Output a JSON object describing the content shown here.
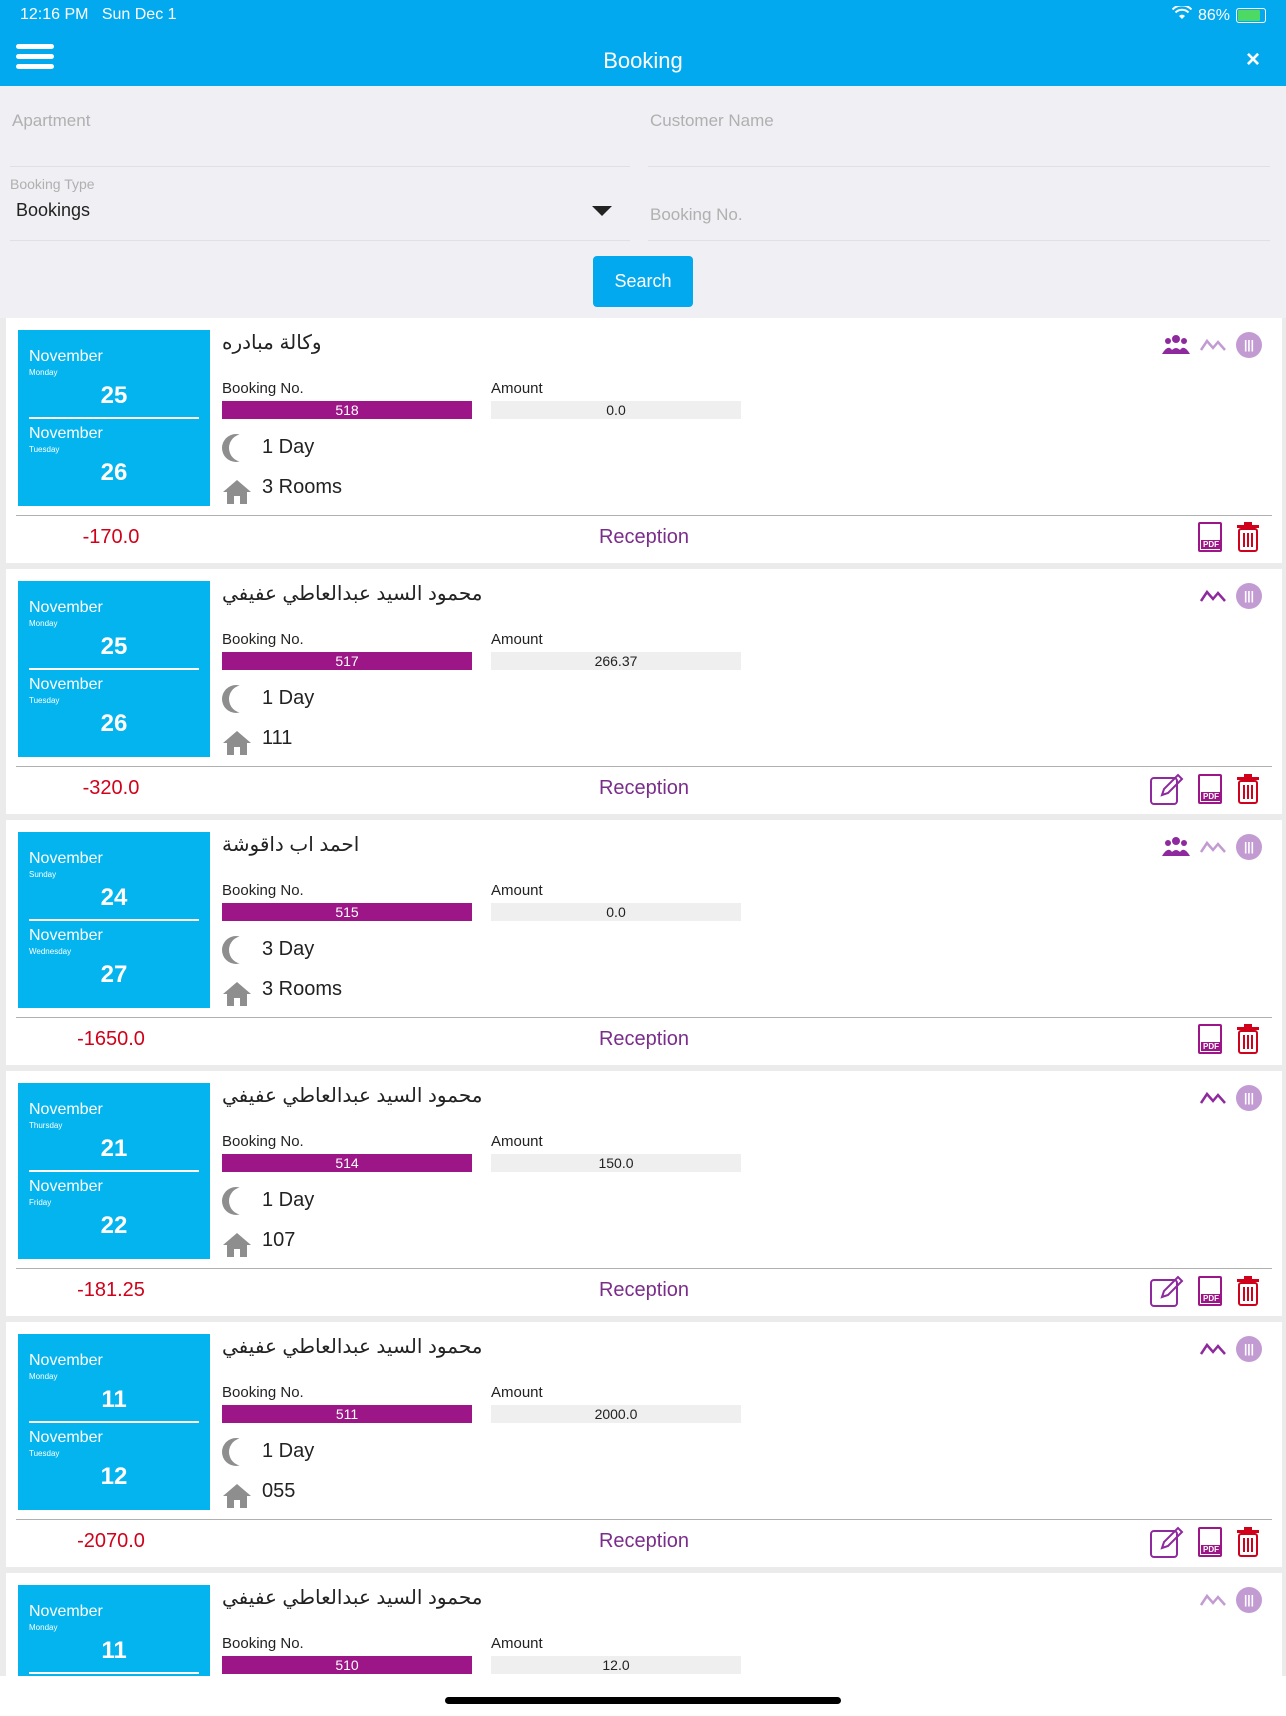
{
  "status_bar": {
    "time": "12:16 PM",
    "date": "Sun Dec 1",
    "battery": "86%"
  },
  "header": {
    "title": "Booking",
    "close_label": "×"
  },
  "filters": {
    "apartment_placeholder": "Apartment",
    "customer_placeholder": "Customer Name",
    "booking_type_label": "Booking Type",
    "booking_type_value": "Bookings",
    "booking_no_placeholder": "Booking No.",
    "search_label": "Search"
  },
  "labels": {
    "booking_no": "Booking No.",
    "amount": "Amount",
    "reception": "Reception",
    "pdf": "PDF"
  },
  "bookings": [
    {
      "customer": "وكالة مبادره",
      "from_month": "November",
      "from_dayname": "Monday",
      "from_day": "25",
      "to_month": "November",
      "to_dayname": "Tuesday",
      "to_day": "26",
      "booking_no": "518",
      "amount": "0.0",
      "duration": "1 Day",
      "rooms": "3 Rooms",
      "balance": "-170.0"
    },
    {
      "customer": "محمود السيد عبدالعاطي عفيفي",
      "from_month": "November",
      "from_dayname": "Monday",
      "from_day": "25",
      "to_month": "November",
      "to_dayname": "Tuesday",
      "to_day": "26",
      "booking_no": "517",
      "amount": "266.37",
      "duration": "1 Day",
      "rooms": "111",
      "balance": "-320.0"
    },
    {
      "customer": "احمد اب داقوشة",
      "from_month": "November",
      "from_dayname": "Sunday",
      "from_day": "24",
      "to_month": "November",
      "to_dayname": "Wednesday",
      "to_day": "27",
      "booking_no": "515",
      "amount": "0.0",
      "duration": "3 Day",
      "rooms": "3 Rooms",
      "balance": "-1650.0"
    },
    {
      "customer": "محمود السيد عبدالعاطي عفيفي",
      "from_month": "November",
      "from_dayname": "Thursday",
      "from_day": "21",
      "to_month": "November",
      "to_dayname": "Friday",
      "to_day": "22",
      "booking_no": "514",
      "amount": "150.0",
      "duration": "1 Day",
      "rooms": "107",
      "balance": "-181.25"
    },
    {
      "customer": "محمود السيد عبدالعاطي عفيفي",
      "from_month": "November",
      "from_dayname": "Monday",
      "from_day": "11",
      "to_month": "November",
      "to_dayname": "Tuesday",
      "to_day": "12",
      "booking_no": "511",
      "amount": "2000.0",
      "duration": "1 Day",
      "rooms": "055",
      "balance": "-2070.0"
    },
    {
      "customer": "محمود السيد عبدالعاطي عفيفي",
      "from_month": "November",
      "from_dayname": "Monday",
      "from_day": "11",
      "booking_no": "510",
      "amount": "12.0"
    }
  ]
}
